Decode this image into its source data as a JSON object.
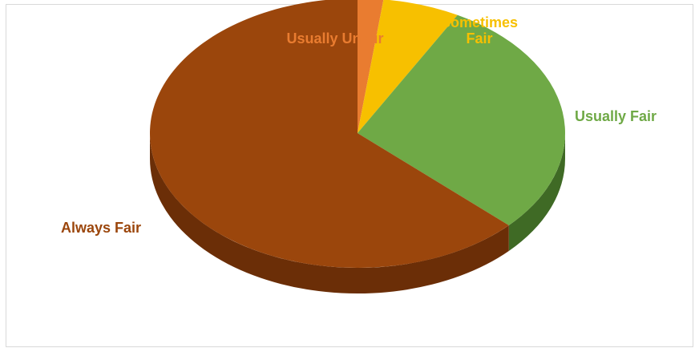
{
  "chart_data": {
    "type": "pie",
    "title": "",
    "categories": [
      "Usually Unfair",
      "Sometimes Fair",
      "Usually Fair",
      "Always Fair"
    ],
    "values": [
      2,
      6,
      29,
      63
    ],
    "label_lines": [
      [
        "Usually Unfair"
      ],
      [
        "Sometimes",
        "Fair"
      ],
      [
        "Usually Fair"
      ],
      [
        "Always Fair"
      ]
    ],
    "colors": [
      "#e97c30",
      "#f7c000",
      "#6fa946",
      "#9b460c"
    ],
    "side_colors": [
      "#b55a1c",
      "#b88e00",
      "#3f6a25",
      "#6b2e07"
    ],
    "legend": "none",
    "three_d": true
  }
}
